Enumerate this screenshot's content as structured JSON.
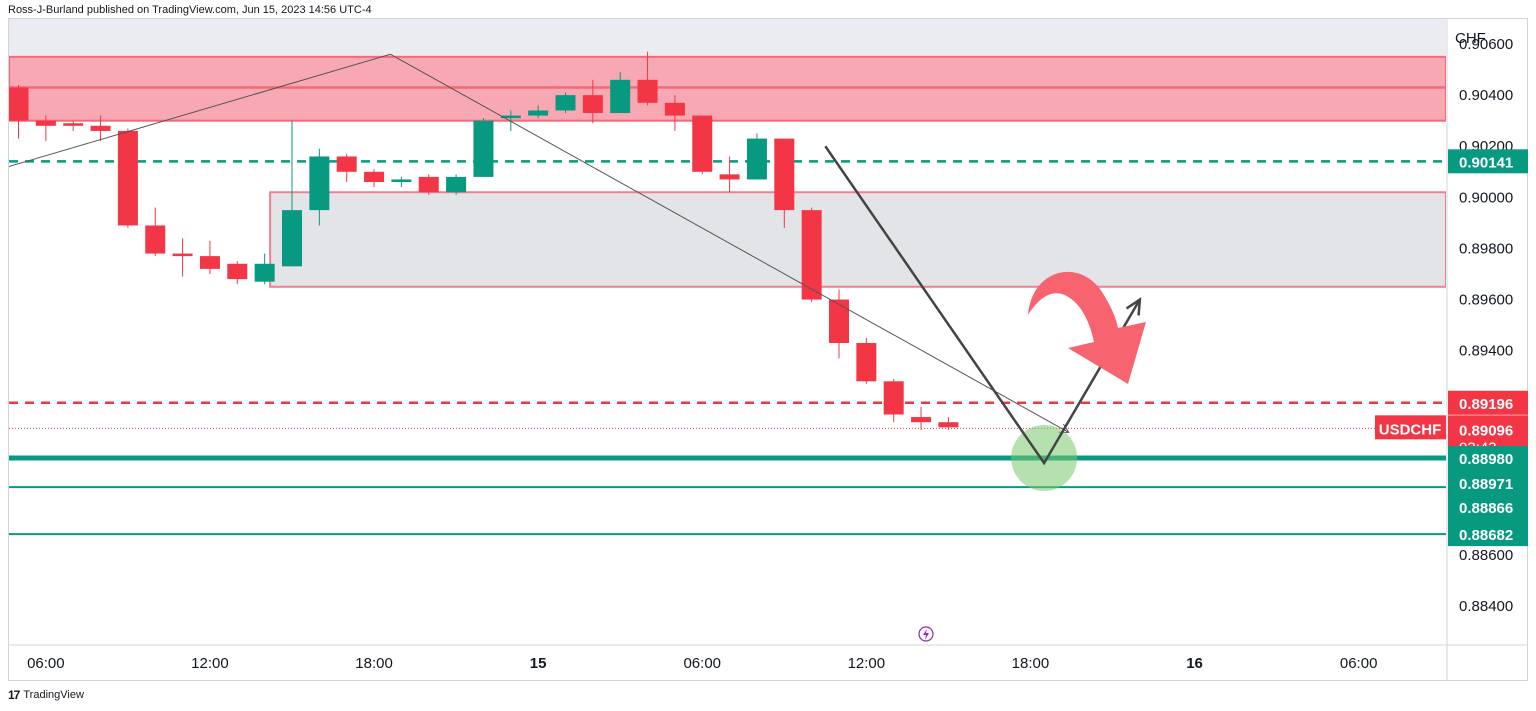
{
  "header": {
    "text": "Ross-J-Burland published on TradingView.com, Jun 15, 2023 14:56 UTC-4"
  },
  "footer": {
    "logo": "17",
    "brand": "TradingView"
  },
  "chart_data": {
    "type": "candlestick",
    "symbol": "USDCHF",
    "currency": "CHF",
    "countdown": "03:43",
    "price_range": [
      0.88248,
      0.90698
    ],
    "y_ticks": [
      {
        "v": 0.906,
        "label": "0.90600"
      },
      {
        "v": 0.904,
        "label": "0.90400"
      },
      {
        "v": 0.902,
        "label": "0.90200"
      },
      {
        "v": 0.9,
        "label": "0.90000"
      },
      {
        "v": 0.898,
        "label": "0.89800"
      },
      {
        "v": 0.896,
        "label": "0.89600"
      },
      {
        "v": 0.894,
        "label": "0.89400"
      },
      {
        "v": 0.886,
        "label": "0.88600"
      },
      {
        "v": 0.884,
        "label": "0.88400"
      }
    ],
    "x_ticks": [
      {
        "i": 1,
        "label": "06:00",
        "bold": false
      },
      {
        "i": 7,
        "label": "12:00",
        "bold": false
      },
      {
        "i": 13,
        "label": "18:00",
        "bold": false
      },
      {
        "i": 19,
        "label": "15",
        "bold": true
      },
      {
        "i": 25,
        "label": "06:00",
        "bold": false
      },
      {
        "i": 31,
        "label": "12:00",
        "bold": false
      },
      {
        "i": 37,
        "label": "18:00",
        "bold": false
      },
      {
        "i": 43,
        "label": "16",
        "bold": true
      },
      {
        "i": 49,
        "label": "06:00",
        "bold": false
      }
    ],
    "candles": [
      {
        "i": 0,
        "o": 0.9043,
        "h": 0.9044,
        "l": 0.9023,
        "c": 0.903
      },
      {
        "i": 1,
        "o": 0.903,
        "h": 0.9032,
        "l": 0.9022,
        "c": 0.9028
      },
      {
        "i": 2,
        "o": 0.9029,
        "h": 0.903,
        "l": 0.9026,
        "c": 0.9028
      },
      {
        "i": 3,
        "o": 0.9028,
        "h": 0.9032,
        "l": 0.9022,
        "c": 0.9026
      },
      {
        "i": 4,
        "o": 0.9026,
        "h": 0.9027,
        "l": 0.8988,
        "c": 0.8989
      },
      {
        "i": 5,
        "o": 0.8989,
        "h": 0.8996,
        "l": 0.8977,
        "c": 0.8978
      },
      {
        "i": 6,
        "o": 0.8978,
        "h": 0.8984,
        "l": 0.8969,
        "c": 0.8977
      },
      {
        "i": 7,
        "o": 0.8977,
        "h": 0.8983,
        "l": 0.897,
        "c": 0.8972
      },
      {
        "i": 8,
        "o": 0.8974,
        "h": 0.8975,
        "l": 0.8966,
        "c": 0.8968
      },
      {
        "i": 9,
        "o": 0.8967,
        "h": 0.8978,
        "l": 0.8966,
        "c": 0.8974
      },
      {
        "i": 10,
        "o": 0.8973,
        "h": 0.903,
        "l": 0.8973,
        "c": 0.8995
      },
      {
        "i": 11,
        "o": 0.8995,
        "h": 0.9019,
        "l": 0.8989,
        "c": 0.9016
      },
      {
        "i": 12,
        "o": 0.9016,
        "h": 0.9017,
        "l": 0.9006,
        "c": 0.901
      },
      {
        "i": 13,
        "o": 0.901,
        "h": 0.9011,
        "l": 0.9004,
        "c": 0.9006
      },
      {
        "i": 14,
        "o": 0.9006,
        "h": 0.9008,
        "l": 0.9004,
        "c": 0.9007
      },
      {
        "i": 15,
        "o": 0.9008,
        "h": 0.9009,
        "l": 0.9001,
        "c": 0.9002
      },
      {
        "i": 16,
        "o": 0.9002,
        "h": 0.9009,
        "l": 0.9001,
        "c": 0.9008
      },
      {
        "i": 17,
        "o": 0.9008,
        "h": 0.9031,
        "l": 0.9008,
        "c": 0.903
      },
      {
        "i": 18,
        "o": 0.9031,
        "h": 0.9034,
        "l": 0.9026,
        "c": 0.9032
      },
      {
        "i": 19,
        "o": 0.9032,
        "h": 0.9036,
        "l": 0.9031,
        "c": 0.9034
      },
      {
        "i": 20,
        "o": 0.9034,
        "h": 0.9041,
        "l": 0.9033,
        "c": 0.904
      },
      {
        "i": 21,
        "o": 0.904,
        "h": 0.9046,
        "l": 0.9029,
        "c": 0.9033
      },
      {
        "i": 22,
        "o": 0.9033,
        "h": 0.9049,
        "l": 0.9033,
        "c": 0.9046
      },
      {
        "i": 23,
        "o": 0.9046,
        "h": 0.9057,
        "l": 0.9036,
        "c": 0.9037
      },
      {
        "i": 24,
        "o": 0.9037,
        "h": 0.904,
        "l": 0.9026,
        "c": 0.9032
      },
      {
        "i": 25,
        "o": 0.9032,
        "h": 0.9032,
        "l": 0.9009,
        "c": 0.901
      },
      {
        "i": 26,
        "o": 0.9009,
        "h": 0.9016,
        "l": 0.9002,
        "c": 0.9007
      },
      {
        "i": 27,
        "o": 0.9007,
        "h": 0.9025,
        "l": 0.9007,
        "c": 0.9023
      },
      {
        "i": 28,
        "o": 0.9023,
        "h": 0.9023,
        "l": 0.8988,
        "c": 0.8995
      },
      {
        "i": 29,
        "o": 0.8995,
        "h": 0.8996,
        "l": 0.8959,
        "c": 0.896
      },
      {
        "i": 30,
        "o": 0.896,
        "h": 0.8964,
        "l": 0.8937,
        "c": 0.8943
      },
      {
        "i": 31,
        "o": 0.8943,
        "h": 0.8945,
        "l": 0.8927,
        "c": 0.8928
      },
      {
        "i": 32,
        "o": 0.8928,
        "h": 0.8929,
        "l": 0.8912,
        "c": 0.8915
      },
      {
        "i": 33,
        "o": 0.8914,
        "h": 0.8918,
        "l": 0.8909,
        "c": 0.8912
      },
      {
        "i": 34,
        "o": 0.8912,
        "h": 0.8914,
        "l": 0.8909,
        "c": 0.891
      }
    ],
    "zones": [
      {
        "name": "upper-resistance-zone",
        "i_start": -1,
        "i_end": 53,
        "top": 0.9055,
        "bottom": 0.903,
        "mid": 0.9043,
        "fill": "#f7a8b2",
        "stroke": "#f06a7a"
      },
      {
        "name": "gap-zone",
        "i_start": 9.2,
        "i_end": 53,
        "top": 0.9002,
        "bottom": 0.8965,
        "fill": "#e3e4e8",
        "stroke": "#f08090"
      }
    ],
    "levels": [
      {
        "v": 0.90141,
        "label": "0.90141",
        "color": "#089981",
        "style": "dashed"
      },
      {
        "v": 0.89196,
        "label": "0.89196",
        "color": "#f23645",
        "style": "dashed"
      },
      {
        "v": 0.8898,
        "label": "0.88980",
        "color": "#089981",
        "style": "solid-thick"
      },
      {
        "v": 0.88971,
        "label": "0.88971",
        "color": "#089981",
        "style": "none"
      },
      {
        "v": 0.88866,
        "label": "0.88866",
        "color": "#089981",
        "style": "solid"
      },
      {
        "v": 0.88682,
        "label": "0.88682",
        "color": "#089981",
        "style": "solid"
      }
    ],
    "last_price": {
      "v": 0.89096,
      "label": "0.89096"
    },
    "trendlines": [
      {
        "name": "thin-trend-up",
        "i1": -1,
        "p1": 0.901,
        "i2": 13.6,
        "p2": 0.9056
      },
      {
        "name": "thin-trend-down",
        "i1": 13.6,
        "p1": 0.9056,
        "i2": 38.4,
        "p2": 0.8908
      }
    ],
    "projection": [
      {
        "i": 29.5,
        "p": 0.902
      },
      {
        "i": 37.5,
        "p": 0.8896
      },
      {
        "i": 41.0,
        "p": 0.896
      }
    ],
    "target_circle": {
      "i": 37.5,
      "p": 0.8898
    },
    "candle_colors": {
      "up": "#089981",
      "down": "#f23645"
    }
  }
}
